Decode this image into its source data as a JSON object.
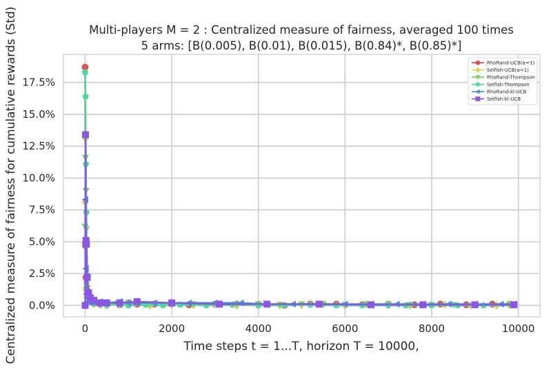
{
  "chart_data": {
    "type": "line",
    "title": "Multi-players M = 2 : Centralized measure of fairness, averaged 100 times",
    "subtitle": "5 arms: [B(0.005), B(0.01), B(0.015), B(0.84)*, B(0.85)*]",
    "xlabel": "Time steps t = 1...T, horizon T = 10000,",
    "ylabel": "Centralized measure of fairness for cumulative rewards (Std)",
    "xlim": [
      -500,
      10500
    ],
    "ylim": [
      -0.009,
      0.197
    ],
    "x_ticks": [
      0,
      2000,
      4000,
      6000,
      8000,
      10000
    ],
    "x_tick_labels": [
      "0",
      "2000",
      "4000",
      "6000",
      "8000",
      "10000"
    ],
    "y_ticks": [
      0,
      0.025,
      0.05,
      0.075,
      0.1,
      0.125,
      0.15,
      0.175
    ],
    "y_tick_labels": [
      "0.0%",
      "2.5%",
      "5.0%",
      "7.5%",
      "10.0%",
      "12.5%",
      "15.0%",
      "17.5%"
    ],
    "grid": true,
    "legend_position": "top-right",
    "series": [
      {
        "name": "RhoRand-UCB(α=1)",
        "color": "#d9534f",
        "marker": "circle",
        "x": [
          1,
          10,
          20,
          30,
          50,
          80,
          120,
          200,
          350,
          500,
          800,
          1000,
          1200,
          1600,
          2000,
          2400,
          3000,
          3500,
          4000,
          4600,
          5200,
          5800,
          6400,
          7000,
          7600,
          8200,
          8800,
          9400,
          9800
        ],
        "y": [
          0.187,
          0.047,
          0.022,
          0.013,
          0.023,
          0.006,
          0.003,
          0.002,
          0.001,
          0.002,
          0.0005,
          0.002,
          0.001,
          0.001,
          0.001,
          0.0005,
          0.001,
          0.001,
          0.001,
          0.0,
          0.001,
          0.001,
          0.0005,
          0.001,
          0.0005,
          0.001,
          0.0005,
          0.001,
          0.001
        ]
      },
      {
        "name": "Selfish-UCB(α=1)",
        "color": "#d9d55a",
        "marker": "diamond",
        "x": [
          1,
          10,
          20,
          30,
          50,
          80,
          120,
          200,
          350,
          500,
          800,
          1000,
          1500,
          2000,
          2500,
          3000,
          3500,
          4000,
          4500,
          5000,
          5500,
          6000,
          6500,
          7000,
          7500,
          8300,
          8900,
          9500,
          9800
        ],
        "y": [
          0.081,
          0.131,
          0.013,
          0.018,
          0.007,
          0.004,
          0.003,
          0.001,
          0.002,
          0.0,
          0.001,
          0.0005,
          0.0,
          0.001,
          0.0005,
          0.001,
          0.0,
          0.001,
          0.0,
          0.0005,
          0.001,
          0.0,
          0.001,
          0.0005,
          0.0,
          0.0005,
          0.0,
          0.0,
          0.0005
        ]
      },
      {
        "name": "RhoRand-Thompson",
        "color": "#6fd45a",
        "marker": "triangle-down",
        "x": [
          1,
          10,
          20,
          30,
          50,
          80,
          120,
          200,
          350,
          500,
          800,
          1000,
          1500,
          2000,
          2500,
          3000,
          3500,
          4000,
          4500,
          5000,
          5500,
          6000,
          6500,
          7000,
          7500,
          8000,
          8500,
          9000,
          9800
        ],
        "y": [
          0.062,
          0.116,
          0.09,
          0.06,
          0.014,
          0.009,
          0.006,
          0.002,
          0.0,
          0.001,
          0.001,
          0.002,
          0.001,
          0.001,
          0.001,
          0.001,
          0.001,
          0.001,
          0.0005,
          0.001,
          0.001,
          0.0005,
          0.001,
          0.001,
          0.0005,
          0.0005,
          0.0005,
          0.0005,
          0.0005
        ]
      },
      {
        "name": "Selfish-Thompson",
        "color": "#4dd6a0",
        "marker": "pentagon",
        "x": [
          1,
          10,
          20,
          30,
          50,
          80,
          120,
          200,
          350,
          500,
          800,
          1000,
          1400,
          1800,
          2200,
          2800,
          3400,
          4000,
          4600,
          5200,
          5800,
          6400,
          7000,
          7400,
          8000,
          8600,
          9200,
          9900
        ],
        "y": [
          0.183,
          0.164,
          0.111,
          0.073,
          0.024,
          0.009,
          0.004,
          0.002,
          0.002,
          0.0,
          0.001,
          0.0,
          0.0005,
          0.0,
          0.0005,
          0.0,
          0.0005,
          0.0,
          0.0,
          0.0005,
          0.0,
          0.0,
          0.0,
          0.0,
          0.0,
          0.0,
          0.0,
          0.0
        ]
      },
      {
        "name": "RhoRand-kl-UCB",
        "color": "#4a90d9",
        "marker": "triangle-left",
        "x": [
          1,
          10,
          20,
          30,
          50,
          80,
          120,
          200,
          350,
          500,
          800,
          1000,
          1200,
          1600,
          2000,
          2400,
          3000,
          3600,
          4200,
          4800,
          5400,
          6000,
          6600,
          7200,
          7800,
          8400,
          9000,
          9600,
          9900
        ],
        "y": [
          0.049,
          0.083,
          0.029,
          0.009,
          0.006,
          0.003,
          0.002,
          0.002,
          0.003,
          0.002,
          0.003,
          0.002,
          0.002,
          0.002,
          0.002,
          0.002,
          0.002,
          0.002,
          0.001,
          0.001,
          0.001,
          0.001,
          0.001,
          0.001,
          0.001,
          0.001,
          0.001,
          0.001,
          0.001
        ]
      },
      {
        "name": "Selfish-kl-UCB",
        "color": "#8a56e2",
        "marker": "square",
        "x": [
          1,
          10,
          20,
          30,
          50,
          80,
          120,
          200,
          350,
          500,
          800,
          1200,
          2000,
          3100,
          4200,
          5400,
          6600,
          7800,
          9000,
          9900
        ],
        "y": [
          0.0,
          0.134,
          0.051,
          0.048,
          0.022,
          0.01,
          0.006,
          0.004,
          0.002,
          0.002,
          0.002,
          0.003,
          0.002,
          0.001,
          0.001,
          0.001,
          0.0005,
          0.0005,
          0.0005,
          0.0005
        ]
      }
    ]
  }
}
